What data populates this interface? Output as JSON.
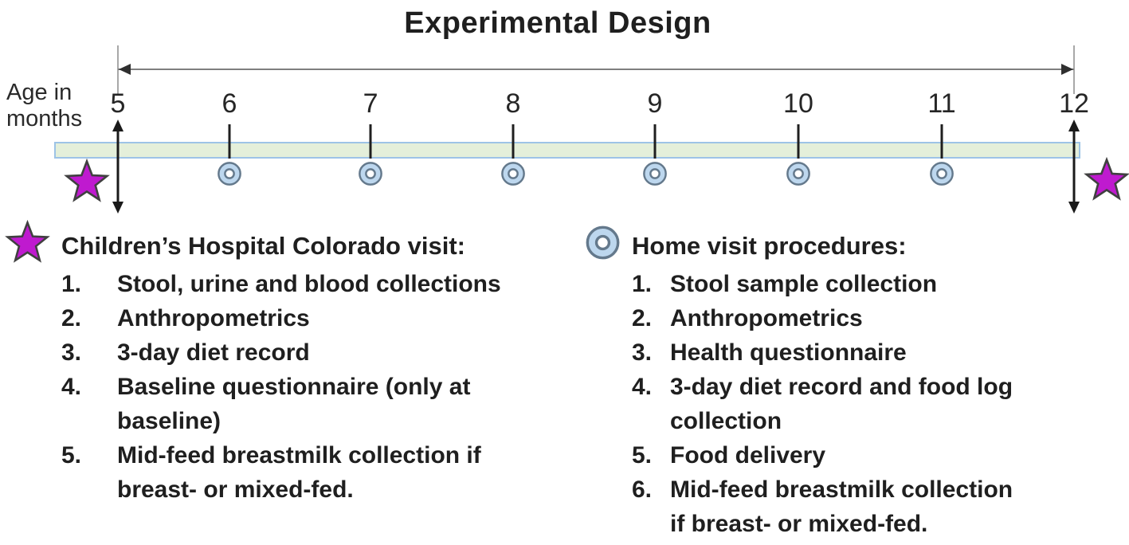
{
  "title": "Experimental Design",
  "axis_label": "Age in\nmonths",
  "timeline": {
    "months": [
      {
        "label": "5",
        "x_pct": 10.44,
        "type": "hospital"
      },
      {
        "label": "6",
        "x_pct": 20.32,
        "type": "home"
      },
      {
        "label": "7",
        "x_pct": 32.82,
        "type": "home"
      },
      {
        "label": "8",
        "x_pct": 45.45,
        "type": "home"
      },
      {
        "label": "9",
        "x_pct": 58.01,
        "type": "home"
      },
      {
        "label": "10",
        "x_pct": 70.71,
        "type": "home"
      },
      {
        "label": "11",
        "x_pct": 83.42,
        "type": "home"
      },
      {
        "label": "12",
        "x_pct": 95.13,
        "type": "hospital"
      }
    ],
    "span_arrow": {
      "from_month": "5",
      "to_month": "12"
    }
  },
  "legend": {
    "hospital": {
      "marker": "star",
      "title": "Children’s Hospital Colorado visit:",
      "items": [
        "Stool, urine and blood collections",
        "Anthropometrics",
        "3-day diet record",
        "Baseline questionnaire (only at\nbaseline)",
        "Mid-feed breastmilk collection if\nbreast- or mixed-fed."
      ]
    },
    "home": {
      "marker": "double-circle",
      "title": "Home visit procedures:",
      "items": [
        "Stool sample collection",
        "Anthropometrics",
        "Health questionnaire",
        "3-day diet record and food log\ncollection",
        "Food delivery",
        "Mid-feed breastmilk collection\nif breast- or mixed-fed."
      ]
    }
  },
  "colors": {
    "text": "#1f1f1f",
    "bar_fill": "#e4efda",
    "bar_border": "#9dc3e6",
    "star_fill": "#bf1acf",
    "star_stroke": "#404040",
    "circle_fill": "#bdd7ee",
    "circle_stroke": "#64798c",
    "arrow_gray": "#7f7f7f",
    "arrow_black": "#1a1a1a"
  }
}
